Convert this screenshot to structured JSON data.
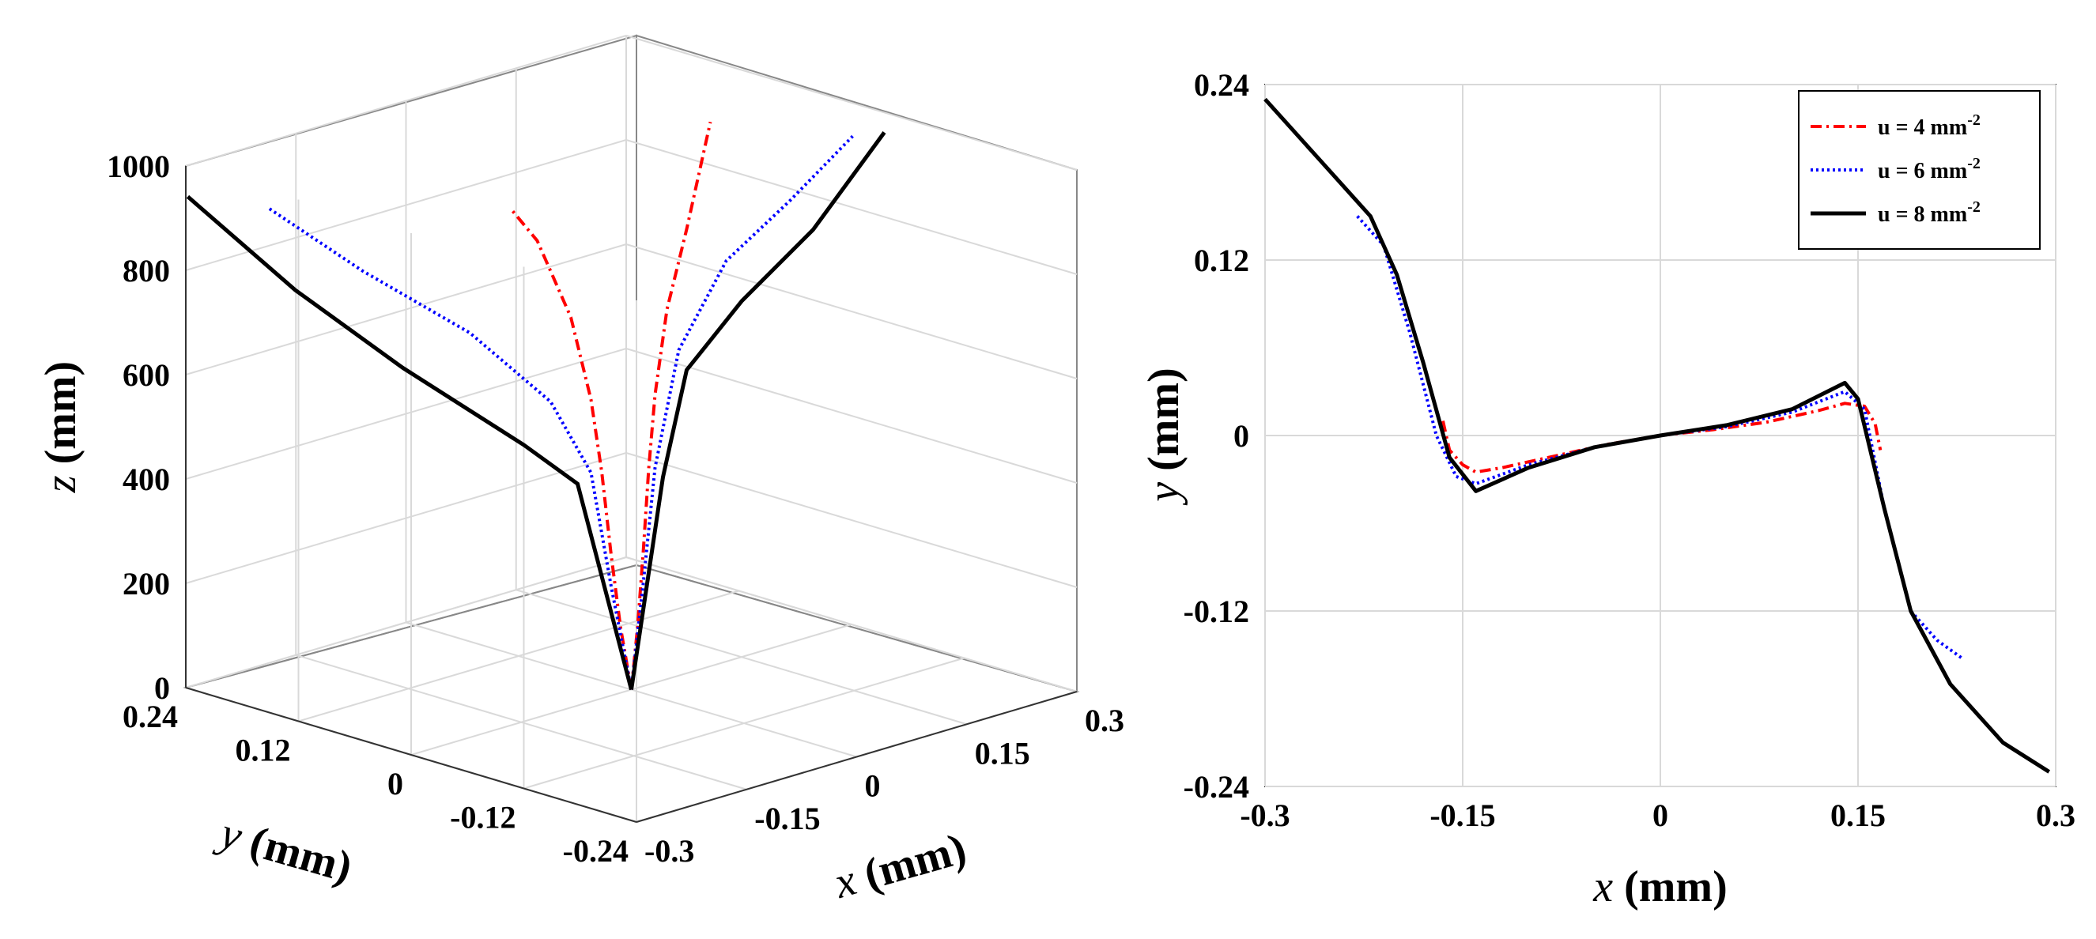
{
  "chart_data": [
    {
      "type": "line",
      "panel": "3d",
      "xlabel": "x (mm)",
      "ylabel": "y (mm)",
      "zlabel": "z (mm)",
      "xlim": [
        -0.3,
        0.3
      ],
      "ylim": [
        -0.24,
        0.24
      ],
      "zlim": [
        0,
        1000
      ],
      "x_ticks": [
        "-0.3",
        "-0.15",
        "0",
        "0.15",
        "0.3"
      ],
      "y_ticks": [
        "0.24",
        "0.12",
        "0",
        "-0.12",
        "-0.24"
      ],
      "z_ticks": [
        "0",
        "200",
        "400",
        "600",
        "800",
        "1000"
      ],
      "series": [
        {
          "name": "u = 4 mm-2",
          "color": "#ff0000",
          "style": "dashdot",
          "left_branch": [
            [
              0,
              0
            ],
            [
              -0.008,
              120
            ],
            [
              -0.015,
              260
            ],
            [
              -0.022,
              420
            ],
            [
              -0.03,
              560
            ],
            [
              -0.045,
              720
            ],
            [
              -0.07,
              870
            ],
            [
              -0.09,
              935
            ]
          ],
          "right_branch": [
            [
              0,
              0
            ],
            [
              0.008,
              120
            ],
            [
              0.015,
              260
            ],
            [
              0.022,
              420
            ],
            [
              0.03,
              560
            ],
            [
              0.045,
              720
            ],
            [
              0.07,
              870
            ],
            [
              0.1,
              1070
            ]
          ]
        },
        {
          "name": "u = 6 mm-2",
          "color": "#0000ff",
          "style": "dotted",
          "left_branch": [
            [
              0,
              0
            ],
            [
              -0.015,
              200
            ],
            [
              -0.03,
              420
            ],
            [
              -0.06,
              560
            ],
            [
              -0.12,
              700
            ],
            [
              -0.2,
              830
            ],
            [
              -0.27,
              960
            ]
          ],
          "right_branch": [
            [
              0,
              0
            ],
            [
              0.015,
              200
            ],
            [
              0.03,
              420
            ],
            [
              0.06,
              640
            ],
            [
              0.12,
              800
            ],
            [
              0.2,
              900
            ],
            [
              0.28,
              1010
            ]
          ]
        },
        {
          "name": "u = 8 mm-2",
          "color": "#000000",
          "style": "solid",
          "left_branch": [
            [
              0,
              0
            ],
            [
              -0.02,
              200
            ],
            [
              -0.04,
              400
            ],
            [
              -0.08,
              480
            ],
            [
              -0.17,
              640
            ],
            [
              -0.25,
              800
            ],
            [
              -0.33,
              990
            ]
          ],
          "right_branch": [
            [
              0,
              0
            ],
            [
              0.02,
              200
            ],
            [
              0.04,
              400
            ],
            [
              0.07,
              600
            ],
            [
              0.14,
              720
            ],
            [
              0.23,
              840
            ],
            [
              0.32,
              1010
            ]
          ]
        }
      ]
    },
    {
      "type": "line",
      "panel": "2d",
      "xlabel": "x (mm)",
      "ylabel": "y (mm)",
      "xlim": [
        -0.3,
        0.3
      ],
      "ylim": [
        -0.24,
        0.24
      ],
      "x_ticks": [
        "-0.3",
        "-0.15",
        "0",
        "0.15",
        "0.3"
      ],
      "y_ticks": [
        "0.24",
        "0.12",
        "0",
        "-0.12",
        "-0.24"
      ],
      "grid": true,
      "legend": "top-right",
      "legend_labels": [
        {
          "base": "u = 4 mm",
          "exp": "-2"
        },
        {
          "base": "u = 6 mm",
          "exp": "-2"
        },
        {
          "base": "u = 8 mm",
          "exp": "-2"
        }
      ],
      "series": [
        {
          "name": "u = 4 mm-2",
          "color": "#ff0000",
          "style": "dashdot",
          "points": [
            [
              -0.165,
              0.01
            ],
            [
              -0.16,
              -0.01
            ],
            [
              -0.15,
              -0.02
            ],
            [
              -0.14,
              -0.025
            ],
            [
              -0.12,
              -0.022
            ],
            [
              -0.08,
              -0.014
            ],
            [
              -0.04,
              -0.006
            ],
            [
              0,
              0
            ],
            [
              0.04,
              0.004
            ],
            [
              0.08,
              0.009
            ],
            [
              0.12,
              0.017
            ],
            [
              0.14,
              0.022
            ],
            [
              0.155,
              0.02
            ],
            [
              0.163,
              0.008
            ],
            [
              0.167,
              -0.01
            ]
          ]
        },
        {
          "name": "u = 6 mm-2",
          "color": "#0000ff",
          "style": "dotted",
          "points": [
            [
              -0.23,
              0.15
            ],
            [
              -0.21,
              0.13
            ],
            [
              -0.19,
              0.07
            ],
            [
              -0.17,
              0.0
            ],
            [
              -0.155,
              -0.028
            ],
            [
              -0.14,
              -0.033
            ],
            [
              -0.1,
              -0.02
            ],
            [
              -0.05,
              -0.008
            ],
            [
              0,
              0
            ],
            [
              0.05,
              0.006
            ],
            [
              0.1,
              0.016
            ],
            [
              0.14,
              0.03
            ],
            [
              0.155,
              0.018
            ],
            [
              0.17,
              -0.05
            ],
            [
              0.19,
              -0.12
            ],
            [
              0.21,
              -0.14
            ],
            [
              0.23,
              -0.153
            ]
          ]
        },
        {
          "name": "u = 8 mm-2",
          "color": "#000000",
          "style": "solid",
          "points": [
            [
              -0.3,
              0.23
            ],
            [
              -0.26,
              0.19
            ],
            [
              -0.22,
              0.15
            ],
            [
              -0.2,
              0.11
            ],
            [
              -0.18,
              0.05
            ],
            [
              -0.16,
              -0.015
            ],
            [
              -0.14,
              -0.038
            ],
            [
              -0.1,
              -0.022
            ],
            [
              -0.05,
              -0.008
            ],
            [
              0,
              0
            ],
            [
              0.05,
              0.007
            ],
            [
              0.1,
              0.018
            ],
            [
              0.14,
              0.036
            ],
            [
              0.15,
              0.025
            ],
            [
              0.17,
              -0.05
            ],
            [
              0.19,
              -0.12
            ],
            [
              0.22,
              -0.17
            ],
            [
              0.26,
              -0.21
            ],
            [
              0.295,
              -0.23
            ]
          ]
        }
      ]
    }
  ]
}
